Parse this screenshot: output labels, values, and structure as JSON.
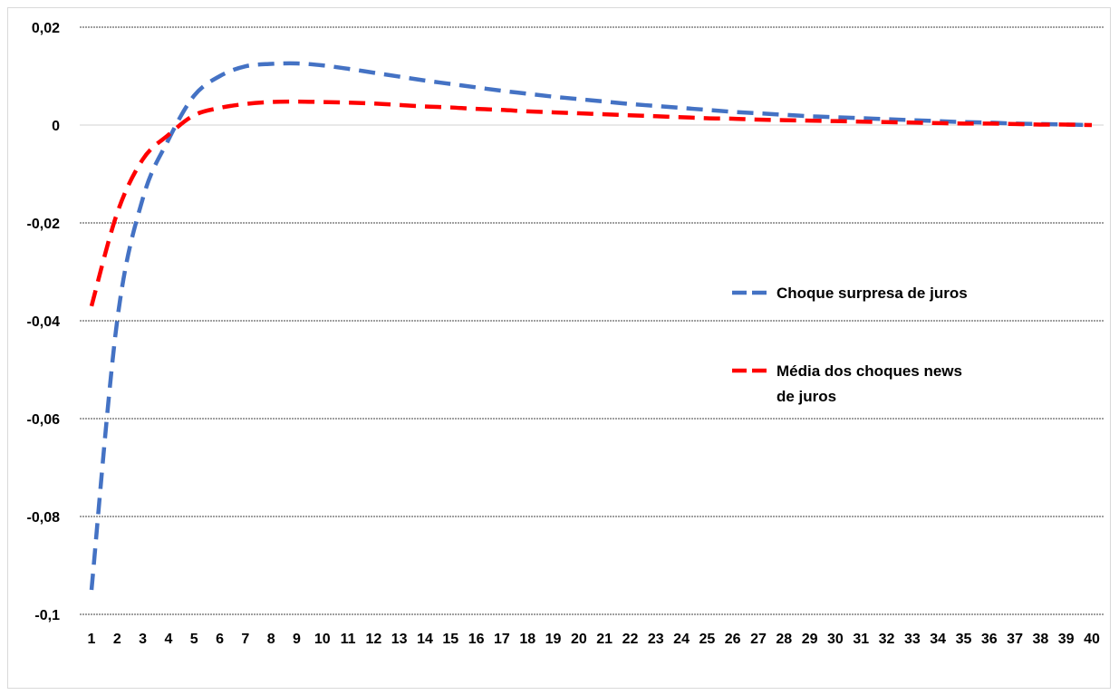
{
  "chart_data": {
    "type": "line",
    "title": "",
    "xlabel": "",
    "ylabel": "",
    "x": [
      1,
      2,
      3,
      4,
      5,
      6,
      7,
      8,
      9,
      10,
      11,
      12,
      13,
      14,
      15,
      16,
      17,
      18,
      19,
      20,
      21,
      22,
      23,
      24,
      25,
      26,
      27,
      28,
      29,
      30,
      31,
      32,
      33,
      34,
      35,
      36,
      37,
      38,
      39,
      40
    ],
    "ylim": [
      -0.1,
      0.02
    ],
    "yticks": [
      0.02,
      0,
      -0.02,
      -0.04,
      -0.06,
      -0.08,
      -0.1
    ],
    "ytick_labels": [
      "0,02",
      "0",
      "-0,02",
      "-0,04",
      "-0,06",
      "-0,08",
      "-0,1"
    ],
    "grid": true,
    "legend_position": "right",
    "series": [
      {
        "name": "Choque surpresa de juros",
        "color": "#4472C4",
        "values": [
          -0.095,
          -0.04,
          -0.015,
          -0.003,
          0.006,
          0.01,
          0.012,
          0.0125,
          0.0126,
          0.0122,
          0.0115,
          0.0107,
          0.0099,
          0.0091,
          0.0084,
          0.0077,
          0.007,
          0.0064,
          0.0058,
          0.0053,
          0.0048,
          0.0043,
          0.0039,
          0.0035,
          0.0031,
          0.0027,
          0.0024,
          0.0021,
          0.0018,
          0.0016,
          0.0014,
          0.0012,
          0.001,
          0.0008,
          0.0006,
          0.0005,
          0.0003,
          0.0002,
          0.0001,
          0.0
        ]
      },
      {
        "name": "Média dos choques news de juros",
        "legend_lines": [
          "Média dos choques news",
          "de juros"
        ],
        "color": "#FF0000",
        "values": [
          -0.037,
          -0.018,
          -0.007,
          -0.002,
          0.002,
          0.0035,
          0.0043,
          0.0047,
          0.0048,
          0.0047,
          0.0046,
          0.0044,
          0.0041,
          0.0038,
          0.0036,
          0.0033,
          0.0031,
          0.0028,
          0.0026,
          0.0024,
          0.0022,
          0.002,
          0.0018,
          0.0016,
          0.0014,
          0.0013,
          0.0011,
          0.001,
          0.0009,
          0.0008,
          0.0007,
          0.0006,
          0.0005,
          0.0004,
          0.0003,
          0.0003,
          0.0002,
          0.0001,
          0.0001,
          0.0
        ]
      }
    ]
  }
}
